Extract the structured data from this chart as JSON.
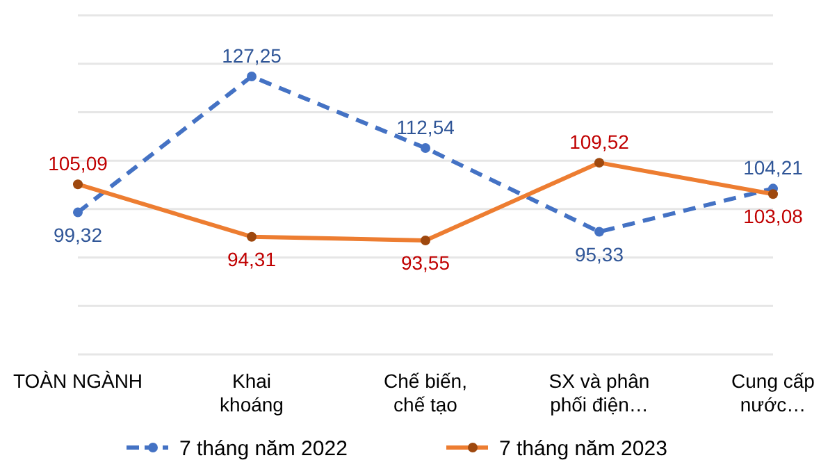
{
  "chart_data": {
    "type": "line",
    "categories": [
      "TOÀN NGÀNH",
      "Khai\nkhoáng",
      "Chế biến,\nchế tạo",
      "SX và phân\nphối điện…",
      "Cung cấp\nnước…"
    ],
    "series": [
      {
        "name": "7 tháng năm 2022",
        "color": "#4472c4",
        "line_style": "dashed",
        "values": [
          99.32,
          127.25,
          112.54,
          95.33,
          104.21
        ],
        "value_labels": [
          "99,32",
          "127,25",
          "112,54",
          "95,33",
          "104,21"
        ]
      },
      {
        "name": "7 tháng năm 2023",
        "color": "#ed7d31",
        "line_style": "solid",
        "values": [
          105.09,
          94.31,
          93.55,
          109.52,
          103.08
        ],
        "value_labels": [
          "105,09",
          "94,31",
          "93,55",
          "109,52",
          "103,08"
        ]
      }
    ],
    "tick_labels": "x",
    "grid": "y",
    "marker": "circle",
    "legend": "bottom"
  }
}
